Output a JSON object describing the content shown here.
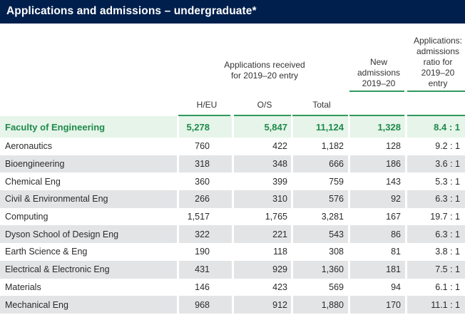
{
  "title": "Applications and admissions – undergraduate*",
  "headers": {
    "applications_group": "Applications received for 2019–20 entry",
    "new_admissions": "New admissions 2019–20",
    "ratio": "Applications: admissions ratio for 2019–20 entry",
    "heu": "H/EU",
    "os": "O/S",
    "total": "Total"
  },
  "faculty": {
    "name": "Faculty of Engineering",
    "heu": "5,278",
    "os": "5,847",
    "total": "11,124",
    "new": "1,328",
    "ratio": "8.4 : 1"
  },
  "rows": [
    {
      "name": "Aeronautics",
      "heu": "760",
      "os": "422",
      "total": "1,182",
      "new": "128",
      "ratio": "9.2 : 1"
    },
    {
      "name": "Bioengineering",
      "heu": "318",
      "os": "348",
      "total": "666",
      "new": "186",
      "ratio": "3.6 : 1"
    },
    {
      "name": "Chemical Eng",
      "heu": "360",
      "os": "399",
      "total": "759",
      "new": "143",
      "ratio": "5.3 : 1"
    },
    {
      "name": "Civil & Environmental Eng",
      "heu": "266",
      "os": "310",
      "total": "576",
      "new": "92",
      "ratio": "6.3 : 1"
    },
    {
      "name": "Computing",
      "heu": "1,517",
      "os": "1,765",
      "total": "3,281",
      "new": "167",
      "ratio": "19.7 : 1"
    },
    {
      "name": "Dyson School of Design Eng",
      "heu": "322",
      "os": "221",
      "total": "543",
      "new": "86",
      "ratio": "6.3 : 1"
    },
    {
      "name": "Earth Science & Eng",
      "heu": "190",
      "os": "118",
      "total": "308",
      "new": "81",
      "ratio": "3.8 : 1"
    },
    {
      "name": "Electrical & Electronic Eng",
      "heu": "431",
      "os": "929",
      "total": "1,360",
      "new": "181",
      "ratio": "7.5 : 1"
    },
    {
      "name": "Materials",
      "heu": "146",
      "os": "423",
      "total": "569",
      "new": "94",
      "ratio": "6.1 : 1"
    },
    {
      "name": "Mechanical Eng",
      "heu": "968",
      "os": "912",
      "total": "1,880",
      "new": "170",
      "ratio": "11.1 : 1"
    }
  ]
}
